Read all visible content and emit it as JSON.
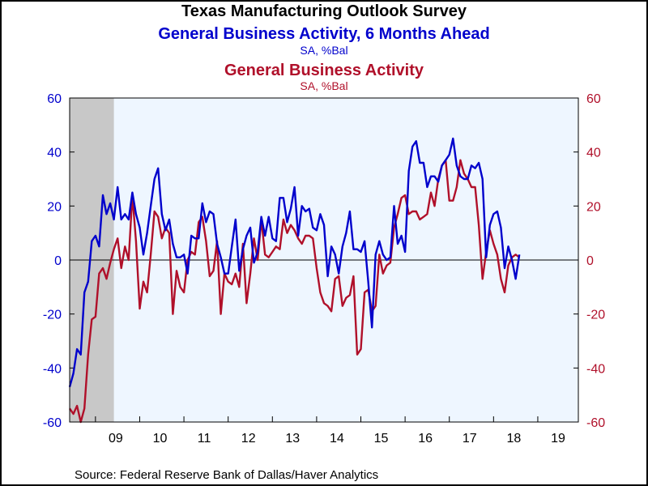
{
  "title": "Texas Manufacturing Outlook Survey",
  "series1_title": "General Business Activity, 6 Months Ahead",
  "series1_units": "SA, %Bal",
  "series2_title": "General Business Activity",
  "series2_units": "SA, %Bal",
  "source": "Source:  Federal Reserve Bank of Dallas/Haver Analytics",
  "colors": {
    "series1": "#0000cc",
    "series2": "#b0102a",
    "plot_bg": "#eef6ff",
    "recession": "#c8c8c8"
  },
  "chart_data": {
    "type": "line",
    "start_month": "2008-06",
    "end_month": "2019-12",
    "ylim": [
      -60,
      60
    ],
    "y_ticks": [
      -60,
      -40,
      -20,
      0,
      20,
      40,
      60
    ],
    "x_tick_labels": [
      "09",
      "10",
      "11",
      "12",
      "13",
      "14",
      "15",
      "16",
      "17",
      "18",
      "19"
    ],
    "recession": {
      "start": "2008-06",
      "end": "2009-06"
    },
    "grid": false,
    "series": [
      {
        "name": "General Business Activity, 6 Months Ahead",
        "axis": "left",
        "values": [
          -47,
          -42,
          -33,
          -35,
          -12,
          -8,
          7,
          9,
          5,
          24,
          17,
          21,
          15,
          27,
          15,
          17,
          15,
          25,
          17,
          12,
          2,
          10,
          20,
          30,
          34,
          17,
          11,
          15,
          6,
          1,
          1,
          2,
          -5,
          9,
          8,
          8,
          21,
          14,
          18,
          17,
          6,
          1,
          -5,
          -5,
          5,
          15,
          -4,
          4,
          9,
          12,
          -1,
          3,
          16,
          9,
          16,
          8,
          7,
          23,
          23,
          14,
          19,
          27,
          9,
          20,
          18,
          19,
          12,
          11,
          17,
          13,
          -6,
          5,
          2,
          -5,
          5,
          10,
          18,
          4,
          4,
          3,
          7,
          -8,
          -25,
          2,
          7,
          2,
          0,
          1,
          20,
          6,
          9,
          3,
          33,
          42,
          44,
          36,
          36,
          27,
          31,
          31,
          29,
          35,
          37,
          39,
          45,
          35,
          31,
          30,
          30,
          35,
          34,
          36,
          30,
          1,
          13,
          17,
          18,
          12,
          -3,
          5,
          0,
          -7,
          2
        ]
      },
      {
        "name": "General Business Activity",
        "axis": "right",
        "values": [
          -55,
          -57,
          -54,
          -60,
          -55,
          -35,
          -22,
          -21,
          -5,
          -3,
          -7,
          -1,
          4,
          8,
          -3,
          5,
          0,
          24,
          7,
          -18,
          -8,
          -12,
          2,
          18,
          16,
          8,
          12,
          10,
          -20,
          -4,
          -10,
          -12,
          0,
          3,
          2,
          14,
          16,
          7,
          -6,
          -4,
          7,
          -20,
          -5,
          -8,
          -9,
          -5,
          -10,
          6,
          -16,
          -5,
          8,
          0,
          15,
          2,
          1,
          3,
          5,
          4,
          15,
          10,
          13,
          11,
          8,
          6,
          9,
          9,
          8,
          -3,
          -12,
          -16,
          -17,
          -19,
          -7,
          -6,
          -17,
          -14,
          -13,
          -6,
          -35,
          -33,
          -12,
          -11,
          -19,
          -17,
          2,
          -5,
          -2,
          -1,
          12,
          17,
          23,
          24,
          17,
          18,
          18,
          15,
          16,
          17,
          25,
          20,
          30,
          35,
          37,
          22,
          22,
          27,
          37,
          32,
          30,
          27,
          27,
          13,
          -7,
          3,
          11,
          6,
          2,
          -7,
          -12,
          -2,
          1,
          2,
          1
        ]
      }
    ]
  }
}
